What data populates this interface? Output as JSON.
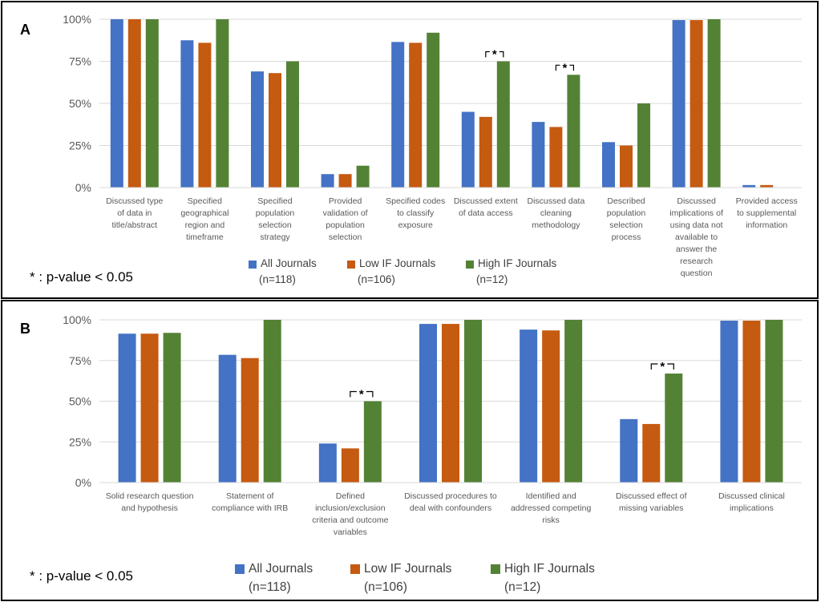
{
  "chart_data": [
    {
      "panel": "A",
      "type": "bar",
      "categories": [
        [
          "Discussed type",
          "of data in",
          "title/abstract"
        ],
        [
          "Specified",
          "geographical",
          "region and",
          "timeframe"
        ],
        [
          "Specified",
          "population",
          "selection",
          "strategy"
        ],
        [
          "Provided",
          "validation of",
          "population",
          "selection"
        ],
        [
          "Specified codes",
          "to classify",
          "exposure"
        ],
        [
          "Discussed extent",
          "of data access"
        ],
        [
          "Discussed data",
          "cleaning",
          "methodology"
        ],
        [
          "Described",
          "population",
          "selection",
          "process"
        ],
        [
          "Discussed",
          "implications of",
          "using data not",
          "available to",
          "answer the",
          "research",
          "question"
        ],
        [
          "Provided access",
          "to supplemental",
          "information"
        ]
      ],
      "series": [
        {
          "name": "All Journals",
          "n": "(n=118)",
          "color": "#4472C4",
          "values": [
            100,
            87.5,
            69,
            8,
            86.5,
            45,
            39,
            27,
            99.5,
            1.5
          ]
        },
        {
          "name": "Low IF Journals",
          "n": "(n=106)",
          "color": "#C55A11",
          "values": [
            100,
            86,
            68,
            8,
            86,
            42,
            36,
            25,
            99.5,
            1.5
          ]
        },
        {
          "name": "High IF Journals",
          "n": "(n=12)",
          "color": "#548235",
          "values": [
            100,
            100,
            75,
            13,
            92,
            75,
            67,
            50,
            100,
            0
          ]
        }
      ],
      "significant": [
        5,
        6
      ],
      "ylim": [
        0,
        100
      ],
      "yticks": [
        "0%",
        "25%",
        "50%",
        "75%",
        "100%"
      ],
      "grid": true,
      "legend": "bottom"
    },
    {
      "panel": "B",
      "type": "bar",
      "categories": [
        [
          "Solid research question",
          "and hypothesis"
        ],
        [
          "Statement of",
          "compliance with IRB"
        ],
        [
          "Defined",
          "inclusion/exclusion",
          "criteria and outcome",
          "variables"
        ],
        [
          "Discussed procedures to",
          "deal with confounders"
        ],
        [
          "Identified and",
          "addressed competing",
          "risks"
        ],
        [
          "Discussed effect of",
          "missing variables"
        ],
        [
          "Discussed clinical",
          "implications"
        ]
      ],
      "series": [
        {
          "name": "All Journals",
          "n": "(n=118)",
          "color": "#4472C4",
          "values": [
            91.5,
            78.5,
            24,
            97.5,
            94,
            39,
            99.5
          ]
        },
        {
          "name": "Low IF Journals",
          "n": "(n=106)",
          "color": "#C55A11",
          "values": [
            91.5,
            76.5,
            21,
            97.5,
            93.5,
            36,
            99.5
          ]
        },
        {
          "name": "High IF Journals",
          "n": "(n=12)",
          "color": "#548235",
          "values": [
            92,
            100,
            50,
            100,
            100,
            67,
            100
          ]
        }
      ],
      "significant": [
        2,
        5
      ],
      "ylim": [
        0,
        100
      ],
      "yticks": [
        "0%",
        "25%",
        "50%",
        "75%",
        "100%"
      ],
      "grid": true,
      "legend": "bottom"
    }
  ],
  "note": "* : p-value < 0.05",
  "star_label": "*"
}
